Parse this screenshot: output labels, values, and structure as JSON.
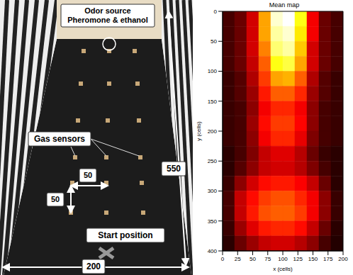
{
  "photo": {
    "odor_source": [
      "Odor source",
      "Pheromone & ethanol"
    ],
    "gas_sensors": "Gas sensors",
    "spacing_x": 50,
    "spacing_y": 50,
    "length": 550,
    "start": "Start position",
    "width": 200
  },
  "chart_data": {
    "type": "heatmap",
    "title": "Mean map",
    "x_label": "x (cells)",
    "y_label": "y (cells)",
    "xlim": [
      0,
      200
    ],
    "ylim": [
      400,
      0
    ],
    "xticks": [
      0,
      25,
      50,
      75,
      100,
      125,
      150,
      175,
      200
    ],
    "yticks": [
      0,
      50,
      100,
      150,
      200,
      250,
      300,
      350,
      400
    ],
    "x_edges": [
      0,
      20,
      40,
      60,
      80,
      100,
      120,
      140,
      160,
      180,
      200
    ],
    "y_edges": [
      0,
      25,
      50,
      75,
      100,
      125,
      150,
      175,
      200,
      225,
      250,
      275,
      300,
      325,
      350,
      375,
      400
    ],
    "cells": [
      [
        0.1,
        0.15,
        0.3,
        0.6,
        0.95,
        1.0,
        0.75,
        0.35,
        0.15,
        0.1
      ],
      [
        0.1,
        0.15,
        0.3,
        0.6,
        0.9,
        0.95,
        0.7,
        0.35,
        0.15,
        0.1
      ],
      [
        0.1,
        0.15,
        0.3,
        0.55,
        0.85,
        0.9,
        0.65,
        0.3,
        0.15,
        0.1
      ],
      [
        0.1,
        0.15,
        0.28,
        0.5,
        0.75,
        0.8,
        0.6,
        0.3,
        0.15,
        0.1
      ],
      [
        0.08,
        0.12,
        0.25,
        0.45,
        0.6,
        0.62,
        0.5,
        0.25,
        0.12,
        0.08
      ],
      [
        0.08,
        0.12,
        0.22,
        0.4,
        0.5,
        0.5,
        0.42,
        0.22,
        0.12,
        0.08
      ],
      [
        0.08,
        0.1,
        0.2,
        0.35,
        0.42,
        0.42,
        0.35,
        0.2,
        0.1,
        0.08
      ],
      [
        0.08,
        0.1,
        0.22,
        0.38,
        0.45,
        0.45,
        0.37,
        0.2,
        0.1,
        0.08
      ],
      [
        0.08,
        0.1,
        0.2,
        0.35,
        0.42,
        0.42,
        0.33,
        0.18,
        0.1,
        0.08
      ],
      [
        0.06,
        0.1,
        0.18,
        0.28,
        0.32,
        0.32,
        0.26,
        0.15,
        0.08,
        0.06
      ],
      [
        0.06,
        0.12,
        0.2,
        0.28,
        0.3,
        0.3,
        0.26,
        0.18,
        0.1,
        0.06
      ],
      [
        0.08,
        0.2,
        0.3,
        0.38,
        0.4,
        0.4,
        0.36,
        0.28,
        0.15,
        0.06
      ],
      [
        0.1,
        0.28,
        0.38,
        0.45,
        0.48,
        0.48,
        0.42,
        0.35,
        0.2,
        0.08
      ],
      [
        0.1,
        0.28,
        0.4,
        0.48,
        0.5,
        0.5,
        0.45,
        0.35,
        0.2,
        0.08
      ],
      [
        0.08,
        0.22,
        0.32,
        0.4,
        0.42,
        0.42,
        0.38,
        0.28,
        0.15,
        0.06
      ],
      [
        0.06,
        0.15,
        0.22,
        0.28,
        0.3,
        0.3,
        0.26,
        0.2,
        0.1,
        0.05
      ]
    ]
  }
}
